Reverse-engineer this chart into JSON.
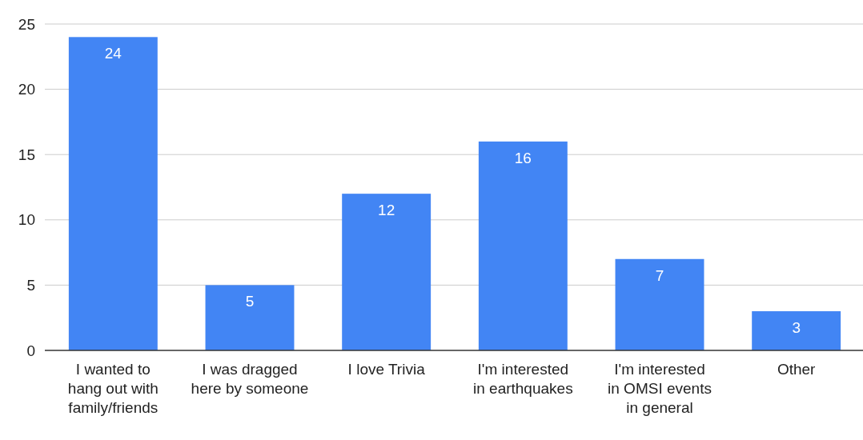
{
  "chart_data": {
    "type": "bar",
    "categories": [
      "I wanted to hang out with family/friends",
      "I was dragged here by someone",
      "I love Trivia",
      "I'm interested in earthquakes",
      "I'm interested in OMSI events in general",
      "Other"
    ],
    "values": [
      24,
      5,
      12,
      16,
      7,
      3
    ],
    "color": "#4285f4",
    "ylim": [
      0,
      25
    ],
    "yticks": [
      0,
      5,
      10,
      15,
      20,
      25
    ],
    "grid": "y",
    "data_labels": true
  }
}
